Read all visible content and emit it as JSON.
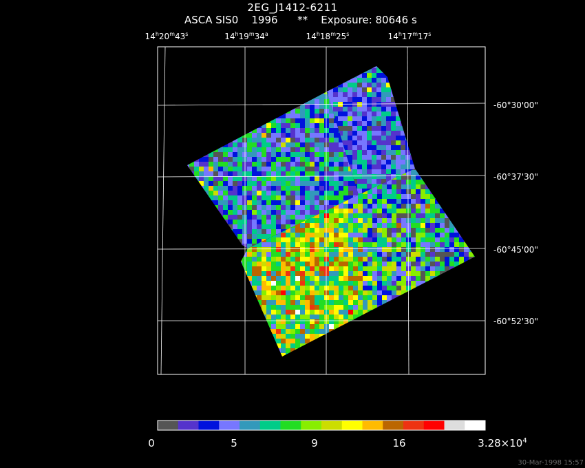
{
  "header": {
    "object": "2EG_J1412-6211",
    "instrument": "ASCA SIS0",
    "year": "1996",
    "flag": "**",
    "exposure": "Exposure: 80646 s"
  },
  "ra_labels": [
    {
      "h": "14",
      "m": "20",
      "s": "43"
    },
    {
      "h": "14",
      "m": "19",
      "s": "34"
    },
    {
      "h": "14",
      "m": "18",
      "s": "25"
    },
    {
      "h": "14",
      "m": "17",
      "s": "17"
    }
  ],
  "dec_labels": [
    "-60°30'00\"",
    "-60°37'30\"",
    "-60°45'00\"",
    "-60°52'30\""
  ],
  "colorbar": {
    "colors": [
      "#555555",
      "#5533cc",
      "#0011dd",
      "#7777ff",
      "#3399bb",
      "#00cc88",
      "#22dd22",
      "#88ee00",
      "#ccdd00",
      "#ffff00",
      "#ffbb00",
      "#bb6600",
      "#ee3311",
      "#ff0000",
      "#dddddd",
      "#ffffff"
    ],
    "labels": [
      "0",
      "5",
      "9",
      "16"
    ],
    "max_label": "3.28×10",
    "max_exp": "4"
  },
  "footer": {
    "timestamp": "30-Mar-1998 15:57"
  }
}
